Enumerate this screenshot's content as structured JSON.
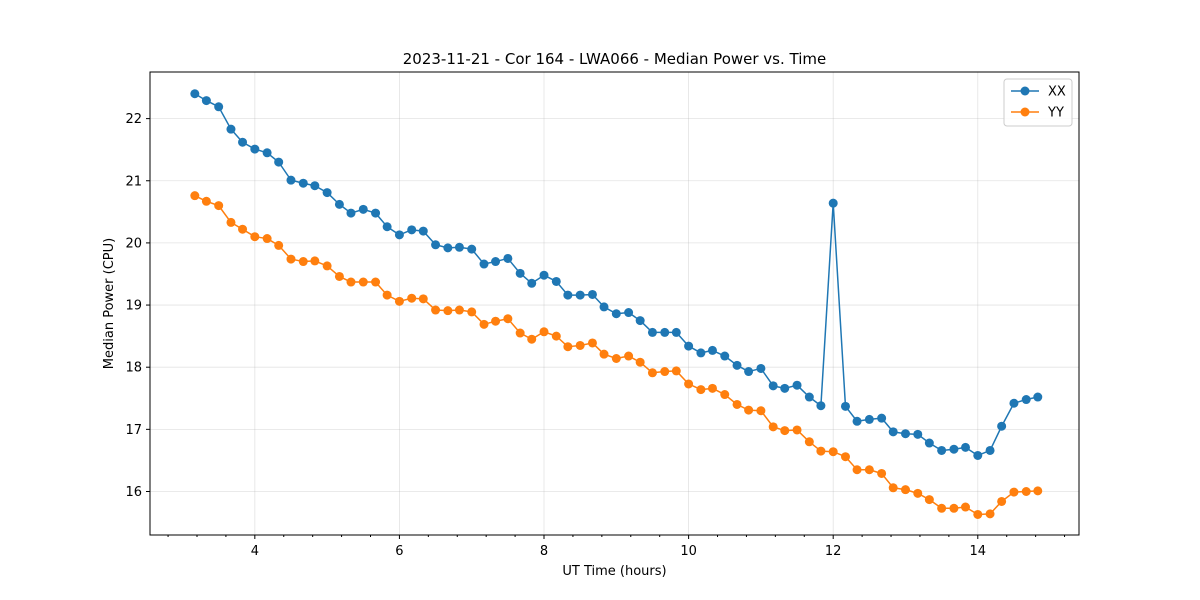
{
  "chart_data": {
    "type": "line",
    "title": "2023-11-21 - Cor 164 - LWA066 - Median Power vs. Time",
    "xlabel": "UT Time (hours)",
    "ylabel": "Median Power (CPU)",
    "xlim": [
      2.55,
      15.4
    ],
    "ylim": [
      15.3,
      22.75
    ],
    "xticks": [
      4,
      6,
      8,
      10,
      12,
      14
    ],
    "xtick_labels": [
      "4",
      "6",
      "8",
      "10",
      "12",
      "14"
    ],
    "yticks": [
      16,
      17,
      18,
      19,
      20,
      21,
      22
    ],
    "ytick_labels": [
      "16",
      "17",
      "18",
      "19",
      "20",
      "21",
      "22"
    ],
    "minor_x_step": 0.4,
    "grid": true,
    "legend_position": "top-right",
    "x": [
      3.17,
      3.33,
      3.5,
      3.67,
      3.83,
      4.0,
      4.17,
      4.33,
      4.5,
      4.67,
      4.83,
      5.0,
      5.17,
      5.33,
      5.5,
      5.67,
      5.83,
      6.0,
      6.17,
      6.33,
      6.5,
      6.67,
      6.83,
      7.0,
      7.17,
      7.33,
      7.5,
      7.67,
      7.83,
      8.0,
      8.17,
      8.33,
      8.5,
      8.67,
      8.83,
      9.0,
      9.17,
      9.33,
      9.5,
      9.67,
      9.83,
      10.0,
      10.17,
      10.33,
      10.5,
      10.67,
      10.83,
      11.0,
      11.17,
      11.33,
      11.5,
      11.67,
      11.83,
      12.0,
      12.17,
      12.33,
      12.5,
      12.67,
      12.83,
      13.0,
      13.17,
      13.33,
      13.5,
      13.67,
      13.83,
      14.0,
      14.17,
      14.33,
      14.5,
      14.67,
      14.83
    ],
    "series": [
      {
        "name": "XX",
        "color": "#1f77b4",
        "values": [
          22.4,
          22.29,
          22.19,
          21.83,
          21.62,
          21.51,
          21.45,
          21.3,
          21.01,
          20.96,
          20.92,
          20.81,
          20.62,
          20.48,
          20.54,
          20.48,
          20.26,
          20.13,
          20.21,
          20.19,
          19.97,
          19.92,
          19.93,
          19.9,
          19.66,
          19.7,
          19.75,
          19.51,
          19.35,
          19.48,
          19.38,
          19.16,
          19.16,
          19.17,
          18.97,
          18.86,
          18.88,
          18.75,
          18.56,
          18.56,
          18.56,
          18.34,
          18.23,
          18.27,
          18.18,
          18.03,
          17.93,
          17.98,
          17.7,
          17.66,
          17.71,
          17.52,
          17.38,
          20.64,
          17.37,
          17.13,
          17.16,
          17.18,
          16.96,
          16.93,
          16.92,
          16.78,
          16.66,
          16.68,
          16.71,
          16.58,
          16.66,
          17.05,
          17.42,
          17.48,
          17.52
        ]
      },
      {
        "name": "YY",
        "color": "#ff7f0e",
        "values": [
          20.76,
          20.67,
          20.6,
          20.33,
          20.22,
          20.1,
          20.07,
          19.96,
          19.74,
          19.7,
          19.71,
          19.63,
          19.46,
          19.37,
          19.37,
          19.37,
          19.16,
          19.06,
          19.11,
          19.1,
          18.92,
          18.91,
          18.92,
          18.89,
          18.69,
          18.74,
          18.78,
          18.55,
          18.45,
          18.57,
          18.5,
          18.33,
          18.35,
          18.39,
          18.21,
          18.14,
          18.18,
          18.08,
          17.91,
          17.93,
          17.94,
          17.73,
          17.64,
          17.66,
          17.56,
          17.4,
          17.31,
          17.3,
          17.04,
          16.98,
          16.99,
          16.8,
          16.65,
          16.64,
          16.56,
          16.35,
          16.35,
          16.29,
          16.06,
          16.03,
          15.97,
          15.87,
          15.73,
          15.73,
          15.75,
          15.63,
          15.64,
          15.84,
          15.99,
          16.0,
          16.01
        ]
      }
    ]
  }
}
